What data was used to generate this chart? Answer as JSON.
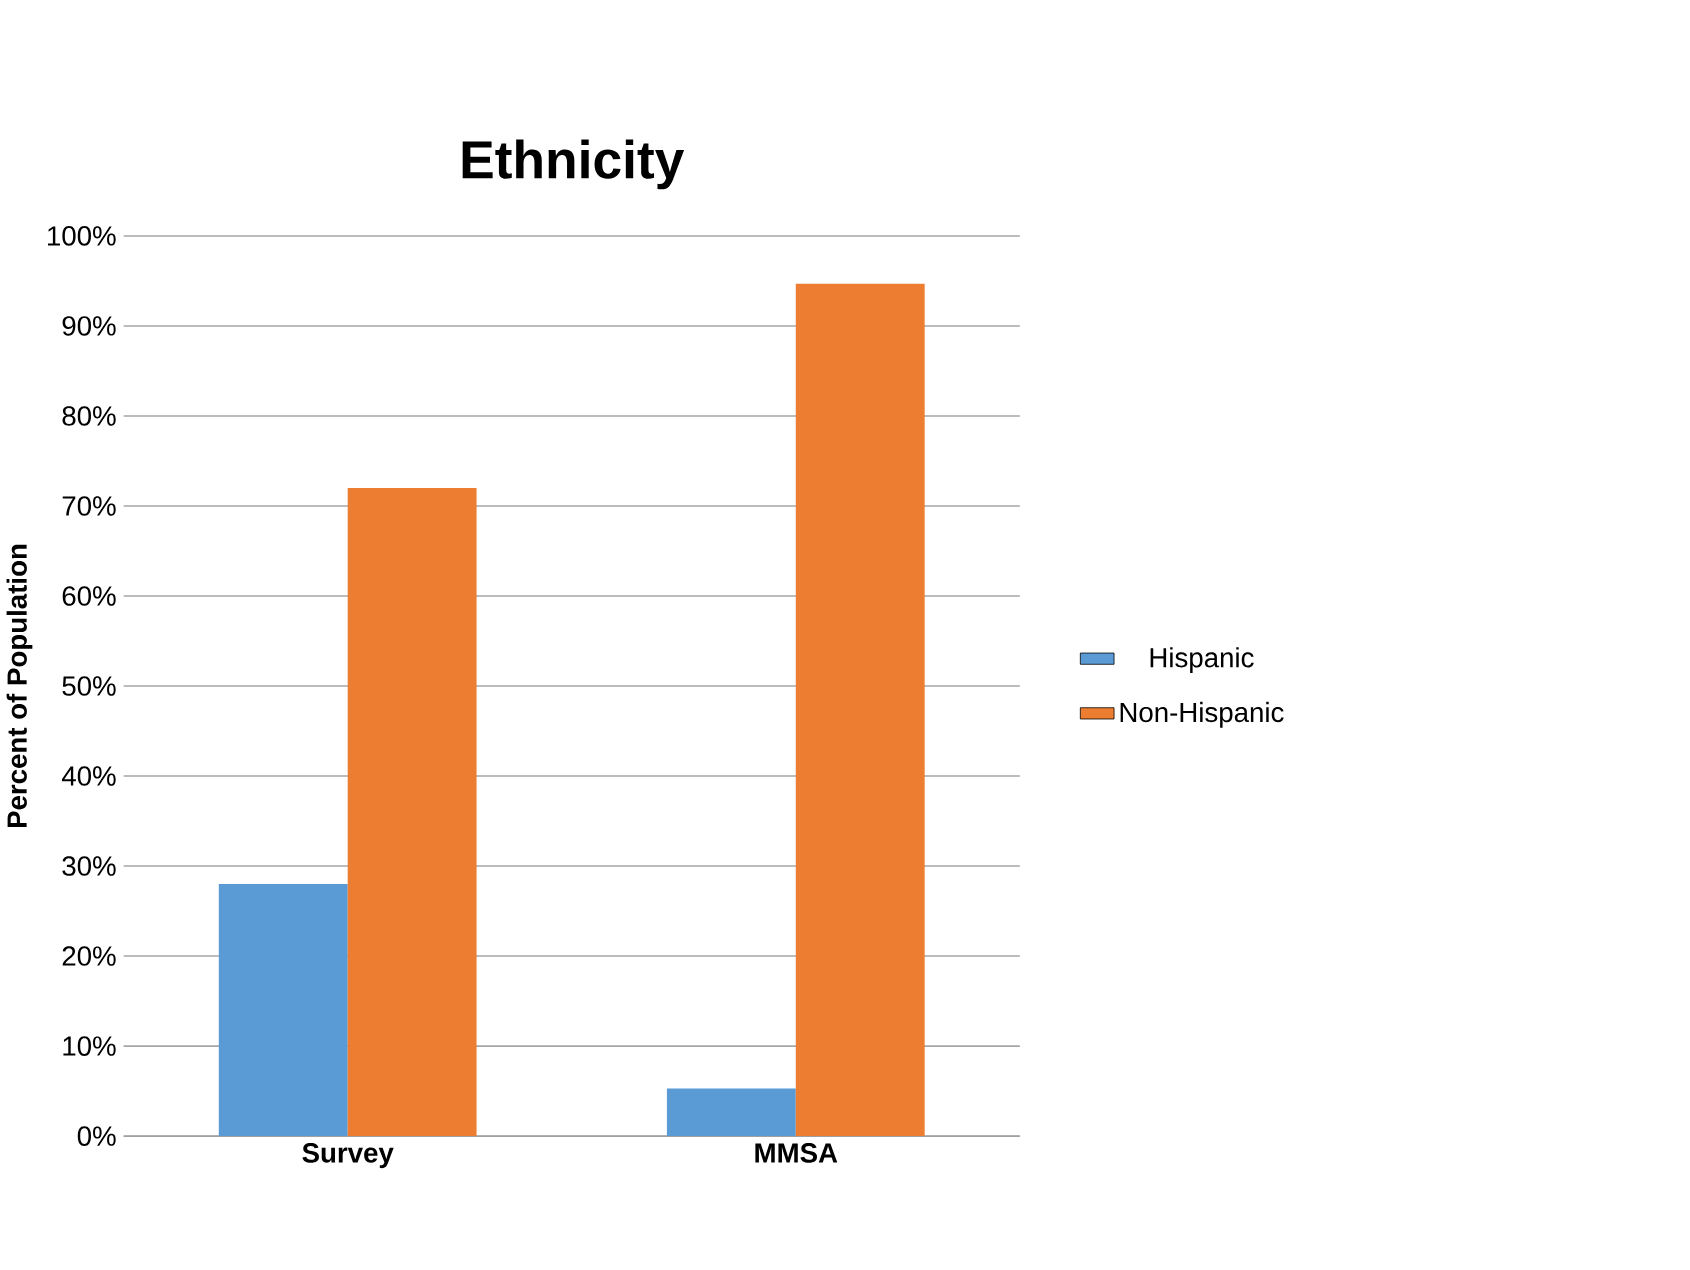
{
  "chart_data": {
    "type": "bar",
    "title": "Ethnicity",
    "ylabel": "Percent of Population",
    "categories": [
      "Survey",
      "MMSA"
    ],
    "series": [
      {
        "name": "Hispanic",
        "color": "#5b9bd5",
        "values": [
          28,
          5.3
        ]
      },
      {
        "name": "Non-Hispanic",
        "color": "#ed7d31",
        "values": [
          72,
          94.7
        ]
      }
    ],
    "ylim": [
      0,
      100
    ],
    "yticks": [
      {
        "value": 0,
        "label": "0%"
      },
      {
        "value": 10,
        "label": "10%"
      },
      {
        "value": 20,
        "label": "20%"
      },
      {
        "value": 30,
        "label": "30%"
      },
      {
        "value": 40,
        "label": "40%"
      },
      {
        "value": 50,
        "label": "50%"
      },
      {
        "value": 60,
        "label": "60%"
      },
      {
        "value": 70,
        "label": "70%"
      },
      {
        "value": 80,
        "label": "80%"
      },
      {
        "value": 90,
        "label": "90%"
      },
      {
        "value": 100,
        "label": "100%"
      }
    ],
    "grid": "y",
    "legend": "right"
  }
}
